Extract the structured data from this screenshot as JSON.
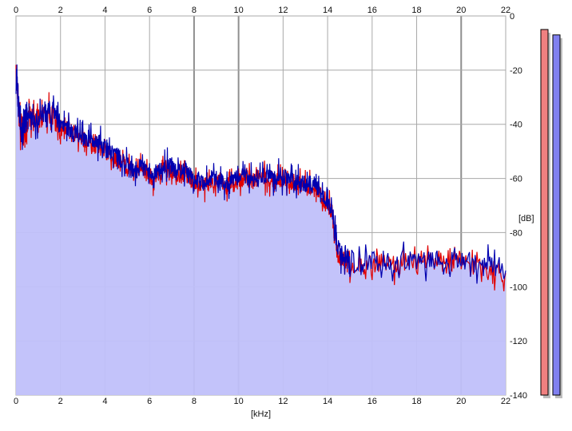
{
  "chart_data": {
    "type": "area",
    "title": "",
    "xlabel": "[kHz]",
    "ylabel": "[dB]",
    "xlim": [
      0,
      22
    ],
    "ylim": [
      -140,
      0
    ],
    "x_ticks": [
      0,
      2,
      4,
      6,
      8,
      10,
      12,
      14,
      16,
      18,
      20,
      22
    ],
    "y_ticks": [
      0,
      -20,
      -40,
      -60,
      -80,
      -100,
      -120,
      -140
    ],
    "grid": true,
    "series": [
      {
        "color": "#e00000",
        "fill": "#c0c0fa",
        "points": [
          [
            0.0,
            -22
          ],
          [
            0.1,
            -30
          ],
          [
            0.2,
            -42
          ],
          [
            0.3,
            -46
          ],
          [
            0.4,
            -41
          ],
          [
            0.5,
            -40
          ],
          [
            0.6,
            -37
          ],
          [
            0.8,
            -39
          ],
          [
            1.0,
            -38
          ],
          [
            1.2,
            -37
          ],
          [
            1.4,
            -36
          ],
          [
            1.6,
            -36
          ],
          [
            1.8,
            -37
          ],
          [
            2.0,
            -42
          ],
          [
            2.2,
            -42
          ],
          [
            2.4,
            -43
          ],
          [
            2.6,
            -44
          ],
          [
            2.8,
            -45
          ],
          [
            3.0,
            -46
          ],
          [
            3.2,
            -46
          ],
          [
            3.4,
            -47
          ],
          [
            3.6,
            -48
          ],
          [
            3.8,
            -48
          ],
          [
            4.0,
            -50
          ],
          [
            4.2,
            -51
          ],
          [
            4.4,
            -52
          ],
          [
            4.6,
            -53
          ],
          [
            4.8,
            -54
          ],
          [
            5.0,
            -56
          ],
          [
            5.2,
            -57
          ],
          [
            5.4,
            -58
          ],
          [
            5.6,
            -57
          ],
          [
            5.8,
            -58
          ],
          [
            6.0,
            -59
          ],
          [
            6.2,
            -60
          ],
          [
            6.4,
            -59
          ],
          [
            6.6,
            -57
          ],
          [
            6.8,
            -56
          ],
          [
            7.0,
            -57
          ],
          [
            7.2,
            -58
          ],
          [
            7.4,
            -59
          ],
          [
            7.6,
            -58
          ],
          [
            7.8,
            -60
          ],
          [
            8.0,
            -61
          ],
          [
            8.2,
            -62
          ],
          [
            8.4,
            -63
          ],
          [
            8.6,
            -62
          ],
          [
            8.8,
            -61
          ],
          [
            9.0,
            -61
          ],
          [
            9.2,
            -62
          ],
          [
            9.4,
            -63
          ],
          [
            9.6,
            -62
          ],
          [
            9.8,
            -61
          ],
          [
            10.0,
            -61
          ],
          [
            10.2,
            -60
          ],
          [
            10.4,
            -60
          ],
          [
            10.6,
            -61
          ],
          [
            10.8,
            -61
          ],
          [
            11.0,
            -60
          ],
          [
            11.2,
            -60
          ],
          [
            11.4,
            -61
          ],
          [
            11.6,
            -61
          ],
          [
            11.8,
            -60
          ],
          [
            12.0,
            -61
          ],
          [
            12.2,
            -61
          ],
          [
            12.4,
            -61
          ],
          [
            12.6,
            -62
          ],
          [
            12.8,
            -62
          ],
          [
            13.0,
            -63
          ],
          [
            13.2,
            -63
          ],
          [
            13.4,
            -64
          ],
          [
            13.6,
            -65
          ],
          [
            13.8,
            -68
          ],
          [
            14.0,
            -70
          ],
          [
            14.2,
            -72
          ],
          [
            14.3,
            -78
          ],
          [
            14.4,
            -87
          ],
          [
            14.6,
            -89
          ],
          [
            14.8,
            -90
          ],
          [
            15.0,
            -91
          ],
          [
            15.5,
            -92
          ],
          [
            16.0,
            -92
          ],
          [
            16.5,
            -91
          ],
          [
            17.0,
            -92
          ],
          [
            17.5,
            -91
          ],
          [
            18.0,
            -92
          ],
          [
            18.5,
            -91
          ],
          [
            19.0,
            -91
          ],
          [
            19.5,
            -92
          ],
          [
            20.0,
            -91
          ],
          [
            20.5,
            -92
          ],
          [
            21.0,
            -92
          ],
          [
            21.5,
            -94
          ],
          [
            22.0,
            -95
          ]
        ]
      },
      {
        "color": "#0000b0",
        "fill": "#c0c0fa",
        "points": [
          [
            0.0,
            -22
          ],
          [
            0.1,
            -29
          ],
          [
            0.2,
            -41
          ],
          [
            0.3,
            -44
          ],
          [
            0.4,
            -40
          ],
          [
            0.5,
            -39
          ],
          [
            0.6,
            -37
          ],
          [
            0.8,
            -38
          ],
          [
            1.0,
            -37
          ],
          [
            1.2,
            -36
          ],
          [
            1.4,
            -35
          ],
          [
            1.6,
            -35
          ],
          [
            1.8,
            -36
          ],
          [
            2.0,
            -41
          ],
          [
            2.2,
            -41
          ],
          [
            2.4,
            -42
          ],
          [
            2.6,
            -43
          ],
          [
            2.8,
            -44
          ],
          [
            3.0,
            -45
          ],
          [
            3.2,
            -45
          ],
          [
            3.4,
            -46
          ],
          [
            3.6,
            -47
          ],
          [
            3.8,
            -47
          ],
          [
            4.0,
            -49
          ],
          [
            4.2,
            -50
          ],
          [
            4.4,
            -51
          ],
          [
            4.6,
            -52
          ],
          [
            4.8,
            -53
          ],
          [
            5.0,
            -55
          ],
          [
            5.2,
            -56
          ],
          [
            5.4,
            -57
          ],
          [
            5.6,
            -56
          ],
          [
            5.8,
            -57
          ],
          [
            6.0,
            -58
          ],
          [
            6.2,
            -59
          ],
          [
            6.4,
            -58
          ],
          [
            6.6,
            -56
          ],
          [
            6.8,
            -55
          ],
          [
            7.0,
            -56
          ],
          [
            7.2,
            -57
          ],
          [
            7.4,
            -58
          ],
          [
            7.6,
            -57
          ],
          [
            7.8,
            -59
          ],
          [
            8.0,
            -60
          ],
          [
            8.2,
            -61
          ],
          [
            8.4,
            -62
          ],
          [
            8.6,
            -61
          ],
          [
            8.8,
            -60
          ],
          [
            9.0,
            -60
          ],
          [
            9.2,
            -61
          ],
          [
            9.4,
            -62
          ],
          [
            9.6,
            -61
          ],
          [
            9.8,
            -60
          ],
          [
            10.0,
            -60
          ],
          [
            10.2,
            -59
          ],
          [
            10.4,
            -59
          ],
          [
            10.6,
            -60
          ],
          [
            10.8,
            -60
          ],
          [
            11.0,
            -59
          ],
          [
            11.2,
            -59
          ],
          [
            11.4,
            -60
          ],
          [
            11.6,
            -60
          ],
          [
            11.8,
            -59
          ],
          [
            12.0,
            -60
          ],
          [
            12.2,
            -60
          ],
          [
            12.4,
            -60
          ],
          [
            12.6,
            -61
          ],
          [
            12.8,
            -61
          ],
          [
            13.0,
            -62
          ],
          [
            13.2,
            -62
          ],
          [
            13.4,
            -63
          ],
          [
            13.6,
            -64
          ],
          [
            13.8,
            -67
          ],
          [
            14.0,
            -69
          ],
          [
            14.2,
            -71
          ],
          [
            14.3,
            -77
          ],
          [
            14.4,
            -86
          ],
          [
            14.6,
            -88
          ],
          [
            14.8,
            -89
          ],
          [
            15.0,
            -90
          ],
          [
            15.5,
            -91
          ],
          [
            16.0,
            -91
          ],
          [
            16.5,
            -90
          ],
          [
            17.0,
            -91
          ],
          [
            17.5,
            -90
          ],
          [
            18.0,
            -91
          ],
          [
            18.5,
            -90
          ],
          [
            19.0,
            -90
          ],
          [
            19.5,
            -91
          ],
          [
            20.0,
            -90
          ],
          [
            20.5,
            -91
          ],
          [
            21.0,
            -91
          ],
          [
            21.5,
            -93
          ],
          [
            22.0,
            -94
          ]
        ]
      }
    ],
    "level_meters": [
      {
        "color": "#f08080",
        "value_db": -5
      },
      {
        "color": "#8080f0",
        "value_db": -7
      }
    ]
  }
}
